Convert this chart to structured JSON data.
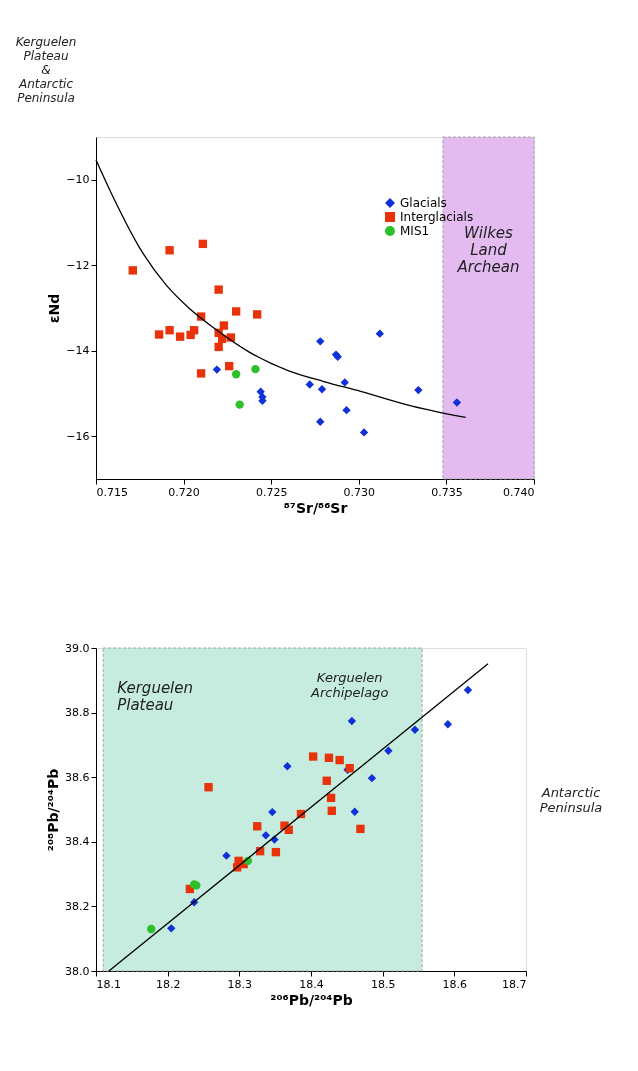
{
  "chart_data": [
    {
      "type": "scatter",
      "xlabel": "⁸⁷Sr/⁸⁶Sr",
      "ylabel": "εNd",
      "xlim": [
        0.715,
        0.74
      ],
      "ylim": [
        -17,
        -9
      ],
      "xticks": [
        0.715,
        {
          "value": 0.72,
          "label": "0.720"
        },
        0.725,
        {
          "value": 0.73,
          "label": "0.730"
        },
        0.735,
        {
          "value": 0.74,
          "label": "0.740"
        }
      ],
      "yticks": [
        -16,
        -14,
        -12,
        -10
      ],
      "legend": "top right",
      "grid": false,
      "bands": [
        {
          "axis": "x",
          "from": 0.7348,
          "to": 0.74,
          "label": "Wilkes Land Archean",
          "color": "#e2b4f0"
        }
      ],
      "annotations": [
        "Kerguelen Plateau & Antarctic Peninsula"
      ],
      "series": [
        {
          "name": "Glacials",
          "color": "#1030d8",
          "marker": "diamond",
          "x": [
            0.7219,
            0.7244,
            0.7245,
            0.7245,
            0.7278,
            0.7312,
            0.7287,
            0.7288,
            0.7272,
            0.7279,
            0.7292,
            0.7334,
            0.7356,
            0.7293,
            0.7278,
            0.7303
          ],
          "values": [
            -14.44,
            -14.96,
            -15.08,
            -15.17,
            -13.78,
            -13.6,
            -14.09,
            -14.14,
            -14.79,
            -14.9,
            -14.74,
            -14.92,
            -15.21,
            -15.39,
            -15.66,
            -15.91
          ]
        },
        {
          "name": "Interglacials",
          "color": "#e8320a",
          "marker": "square",
          "x": [
            0.7171,
            0.7192,
            0.7211,
            0.722,
            0.721,
            0.723,
            0.7242,
            0.7223,
            0.7186,
            0.7192,
            0.7198,
            0.7206,
            0.7204,
            0.722,
            0.7227,
            0.7222,
            0.722,
            0.7226,
            0.721
          ],
          "values": [
            -12.12,
            -11.65,
            -11.5,
            -12.57,
            -13.2,
            -13.08,
            -13.15,
            -13.41,
            -13.62,
            -13.52,
            -13.67,
            -13.52,
            -13.63,
            -13.58,
            -13.69,
            -13.72,
            -13.91,
            -14.36,
            -14.53
          ]
        },
        {
          "name": "MIS1",
          "color": "#2ec02a",
          "marker": "circle",
          "x": [
            0.723,
            0.7241,
            0.7232
          ],
          "values": [
            -14.55,
            -14.43,
            -15.26
          ]
        },
        {
          "type": "line",
          "color": "#000000",
          "line_style": "solid",
          "x": [
            0.715,
            0.7161,
            0.7175,
            0.719,
            0.7203,
            0.722,
            0.7237,
            0.726,
            0.728,
            0.7301,
            0.7331,
            0.7361
          ],
          "values": [
            -9.54,
            -10.51,
            -11.6,
            -12.46,
            -13.0,
            -13.55,
            -14.02,
            -14.47,
            -14.72,
            -14.95,
            -15.3,
            -15.56
          ]
        }
      ]
    },
    {
      "type": "scatter",
      "xlabel": "²⁰⁶Pb/²⁰⁴Pb",
      "ylabel": "²⁰⁸Pb/²⁰⁴Pb",
      "xlim": [
        18.1,
        18.7
      ],
      "ylim": [
        38.0,
        39.0
      ],
      "xticks": [
        18.1,
        18.2,
        18.3,
        18.4,
        18.5,
        18.6,
        18.7
      ],
      "yticks": [
        {
          "value": 38,
          "label": "38.0"
        },
        38.2,
        38.4,
        38.6,
        38.8,
        {
          "value": 39,
          "label": "39.0"
        }
      ],
      "grid": false,
      "bands": [
        {
          "axis": "x",
          "from": 18.11,
          "to": 18.555,
          "label": "Kerguelen Plateau",
          "color": "#bfeadc"
        }
      ],
      "annotations": [
        "Kerguelen Archipelago",
        "Antarctic Peninsula"
      ],
      "series": [
        {
          "color": "#1030d8",
          "marker": "diamond",
          "x": [
            18.367,
            18.346,
            18.337,
            18.349,
            18.282,
            18.237,
            18.205,
            18.457,
            18.619,
            18.591,
            18.545,
            18.508,
            18.485,
            18.451,
            18.461
          ],
          "values": [
            38.634,
            38.492,
            38.42,
            38.407,
            38.357,
            38.213,
            38.132,
            38.774,
            38.87,
            38.764,
            38.747,
            38.682,
            38.597,
            38.623,
            38.493
          ]
        },
        {
          "color": "#e8320a",
          "marker": "square",
          "x": [
            18.257,
            18.325,
            18.363,
            18.369,
            18.329,
            18.351,
            18.299,
            18.297,
            18.306,
            18.231,
            18.403,
            18.425,
            18.44,
            18.454,
            18.422,
            18.428,
            18.429,
            18.386,
            18.469
          ],
          "values": [
            38.569,
            38.448,
            38.45,
            38.437,
            38.371,
            38.368,
            38.341,
            38.321,
            38.331,
            38.254,
            38.664,
            38.66,
            38.653,
            38.628,
            38.589,
            38.536,
            38.496,
            38.486,
            38.44
          ]
        },
        {
          "color": "#2ec02a",
          "marker": "circle",
          "x": [
            18.312,
            18.237,
            18.24,
            18.177
          ],
          "values": [
            38.341,
            38.268,
            38.265,
            38.13
          ]
        },
        {
          "type": "line",
          "color": "#000000",
          "line_style": "solid",
          "x": [
            18.118,
            18.647
          ],
          "values": [
            38.0,
            38.951
          ]
        }
      ]
    }
  ]
}
